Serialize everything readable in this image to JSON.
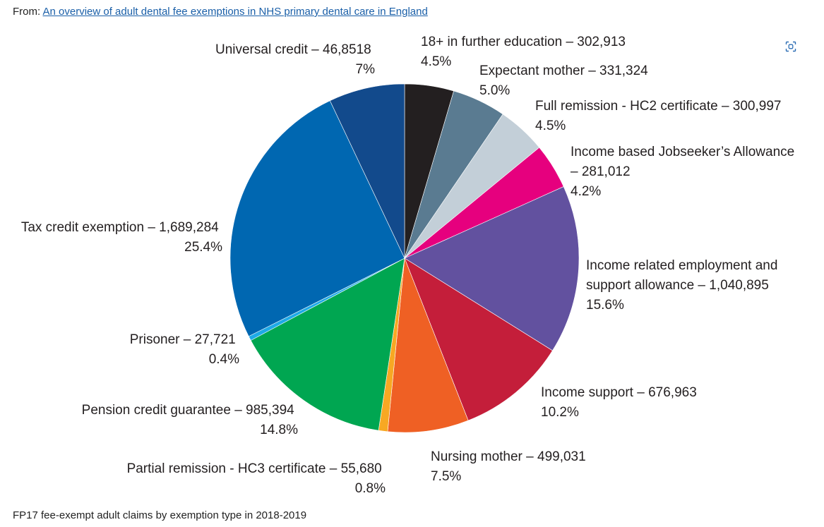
{
  "header": {
    "from_prefix": "From: ",
    "source_link": "An overview of adult dental fee exemptions in NHS primary dental care in England"
  },
  "toolbar": {
    "expand_icon": "expand-icon"
  },
  "caption": "FP17 fee-exempt adult claims by exemption type in 2018-2019",
  "chart_data": {
    "type": "pie",
    "title": "",
    "slices": [
      {
        "name": "18+ in further education – 302,913",
        "pct_label": "4.5%",
        "value": 302913,
        "color": "#231f20"
      },
      {
        "name": "Expectant mother – 331,324",
        "pct_label": "5.0%",
        "value": 331324,
        "color": "#5a7b91"
      },
      {
        "name": "Full remission - HC2 certificate – 300,997",
        "pct_label": "4.5%",
        "value": 300997,
        "color": "#c3cfd8"
      },
      {
        "name_line1": "Income based Jobseeker’s Allowance",
        "name_line2": "– 281,012",
        "pct_label": "4.2%",
        "value": 281012,
        "color": "#e6007e"
      },
      {
        "name_line1": "Income related employment and",
        "name_line2": "support allowance – 1,040,895",
        "pct_label": "15.6%",
        "value": 1040895,
        "color": "#62519f"
      },
      {
        "name": "Income support – 676,963",
        "pct_label": "10.2%",
        "value": 676963,
        "color": "#c41e3a"
      },
      {
        "name": "Nursing mother – 499,031",
        "pct_label": "7.5%",
        "value": 499031,
        "color": "#ef6024"
      },
      {
        "name": "Partial remission - HC3 certificate – 55,680",
        "pct_label": "0.8%",
        "value": 55680,
        "color": "#f7a823"
      },
      {
        "name": "Pension credit guarantee – 985,394",
        "pct_label": "14.8%",
        "value": 985394,
        "color": "#00a651"
      },
      {
        "name": "Prisoner – 27,721",
        "pct_label": "0.4%",
        "value": 27721,
        "color": "#1eaae7"
      },
      {
        "name": "Tax credit exemption – 1,689,284",
        "pct_label": "25.4%",
        "value": 1689284,
        "color": "#0067b1"
      },
      {
        "name": "Universal credit – 46,8518",
        "pct_label": "7%",
        "value": 468518,
        "color": "#124a8c"
      }
    ]
  }
}
